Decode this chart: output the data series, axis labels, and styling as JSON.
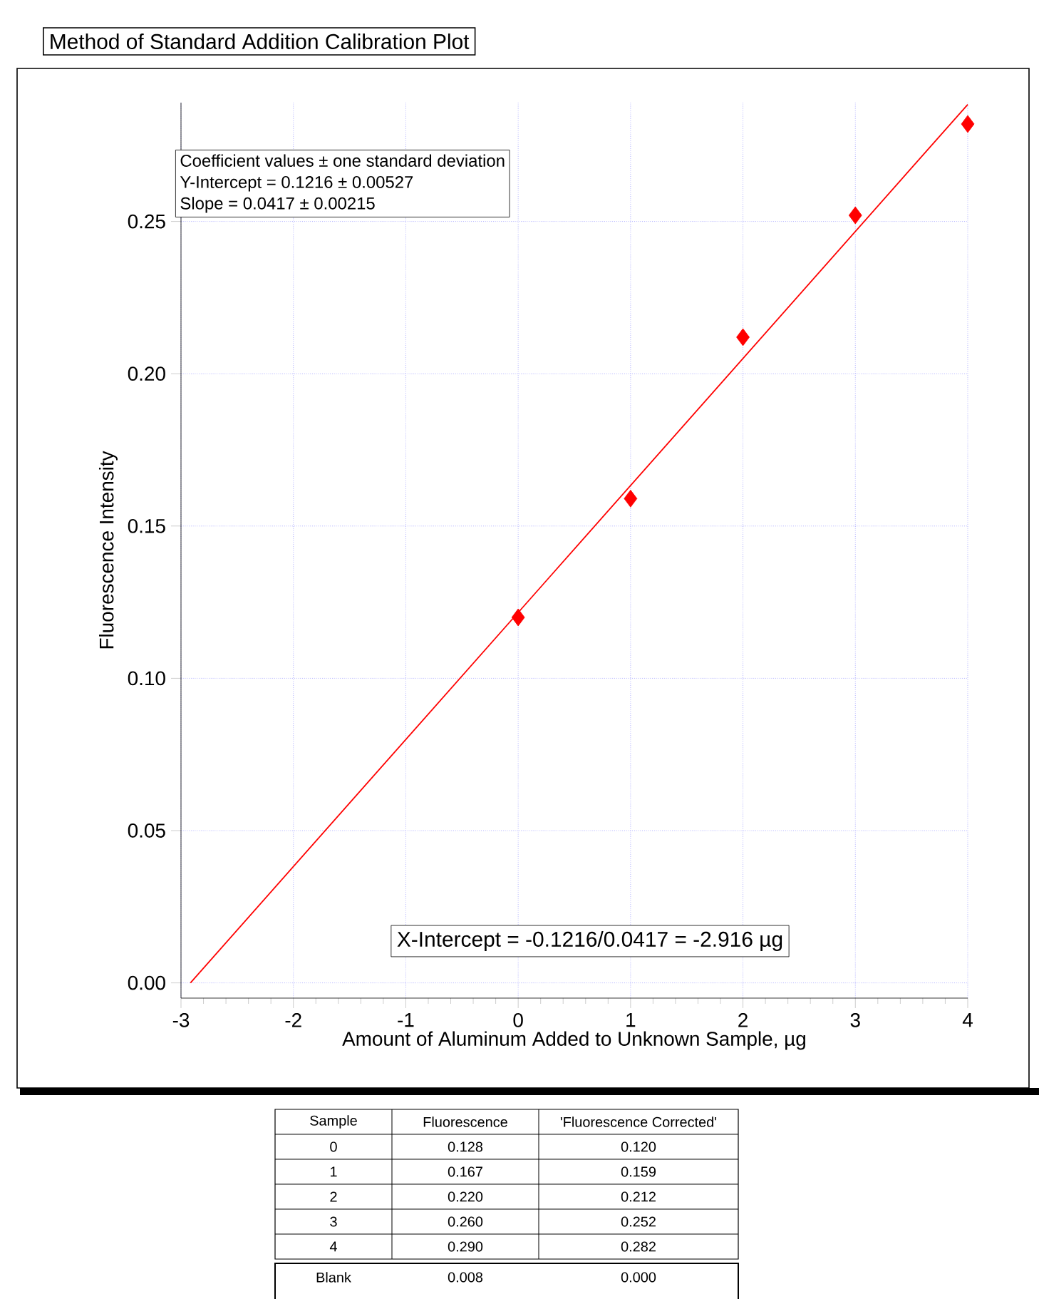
{
  "chart_data": {
    "type": "scatter",
    "title": "Method of Standard Addition Calibration Plot",
    "xlabel": "Amount of Aluminum Added to Unknown Sample, µg",
    "ylabel": "Fluorescence Intensity",
    "x": [
      0,
      1,
      2,
      3,
      4
    ],
    "series": [
      {
        "type": "scatter",
        "color": "#ff0000",
        "marker": "diamond",
        "values": [
          0.12,
          0.159,
          0.212,
          0.252,
          0.282
        ]
      },
      {
        "type": "line",
        "color": "#ff0000",
        "marker": "none",
        "line_style": "solid",
        "x": [
          -2.916,
          4
        ],
        "values": [
          0,
          0.2884
        ]
      }
    ],
    "xlim": [
      -3,
      4
    ],
    "xticks": [
      -3,
      -2,
      -1,
      0,
      1,
      2,
      3,
      4
    ],
    "ylim": [
      -0.005,
      0.289
    ],
    "yticks": [
      {
        "value": 0,
        "label": "0.00"
      },
      {
        "value": 0.05,
        "label": "0.05"
      },
      {
        "value": 0.1,
        "label": "0.10"
      },
      {
        "value": 0.15,
        "label": "0.15"
      },
      {
        "value": 0.2,
        "label": "0.20"
      },
      {
        "value": 0.25,
        "label": "0.25"
      }
    ],
    "grid": true,
    "annotations": [
      "Coefficient values ± one standard deviation",
      "Y-Intercept = 0.1216 ± 0.00527",
      "Slope = 0.0417 ± 0.00215",
      "X-Intercept = -0.1216/0.0417 = -2.916 µg",
      "Sample",
      "Fluorescence",
      "'Fluorescence Corrected'",
      "0",
      "0.128",
      "0.120",
      "1",
      "0.167",
      "0.159",
      "2",
      "0.220",
      "0.212",
      "3",
      "0.260",
      "0.252",
      "4",
      "0.290",
      "0.282",
      "Blank",
      "0.008",
      "0.000"
    ]
  }
}
